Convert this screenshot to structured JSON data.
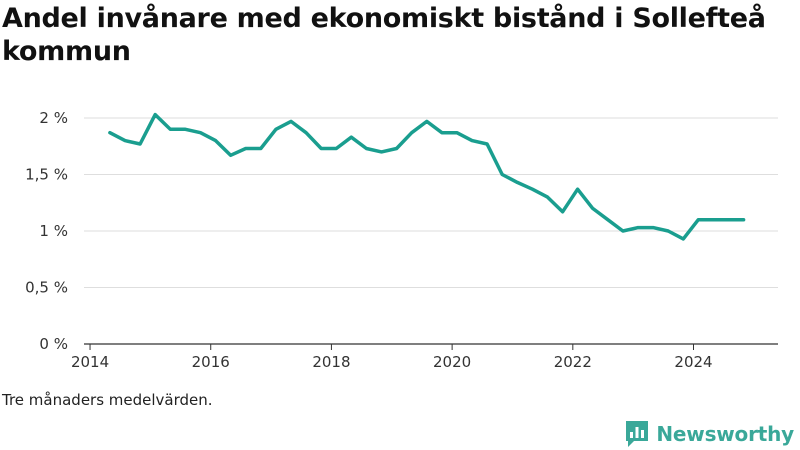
{
  "title": "Andel invånare med ekonomiskt bistånd i Sollefteå kommun",
  "note": "Tre månaders medelvärden.",
  "brand": {
    "name": "Newsworthy",
    "icon": "newsworthy-logo-icon",
    "color": "#3aa899"
  },
  "chart_data": {
    "type": "line",
    "title": "Andel invånare med ekonomiskt bistånd i Sollefteå kommun",
    "xlabel": "",
    "ylabel": "",
    "xlim": [
      2013.9,
      2025.4
    ],
    "ylim": [
      0,
      2
    ],
    "x_ticks": [
      2014,
      2016,
      2018,
      2020,
      2022,
      2024
    ],
    "y_ticks": [
      {
        "value": 0,
        "label": "0 %"
      },
      {
        "value": 0.5,
        "label": "0,5 %"
      },
      {
        "value": 1,
        "label": "1 %"
      },
      {
        "value": 1.5,
        "label": "1,5 %"
      },
      {
        "value": 2,
        "label": "2 %"
      }
    ],
    "grid": "horizontal",
    "legend": "none",
    "line_color": "#1a9e8f",
    "series": [
      {
        "x": [
          2014.33,
          2014.58,
          2014.83,
          2015.08,
          2015.33,
          2015.58,
          2015.83,
          2016.08,
          2016.33,
          2016.58,
          2016.83,
          2017.08,
          2017.33,
          2017.58,
          2017.83,
          2018.08,
          2018.33,
          2018.58,
          2018.83,
          2019.08,
          2019.33,
          2019.58,
          2019.83,
          2020.08,
          2020.33,
          2020.58,
          2020.83,
          2021.08,
          2021.33,
          2021.58,
          2021.83,
          2022.08,
          2022.33,
          2022.58,
          2022.83,
          2023.08,
          2023.33,
          2023.58,
          2023.83,
          2024.08,
          2024.33,
          2024.58,
          2024.83
        ],
        "values": [
          1.87,
          1.8,
          1.77,
          2.03,
          1.9,
          1.9,
          1.87,
          1.8,
          1.67,
          1.73,
          1.73,
          1.9,
          1.97,
          1.87,
          1.73,
          1.73,
          1.83,
          1.73,
          1.7,
          1.73,
          1.87,
          1.97,
          1.87,
          1.87,
          1.8,
          1.77,
          1.5,
          1.43,
          1.37,
          1.3,
          1.17,
          1.37,
          1.2,
          1.1,
          1.0,
          1.03,
          1.03,
          1.0,
          0.93,
          1.1,
          1.1,
          1.1,
          1.1
        ]
      }
    ]
  }
}
